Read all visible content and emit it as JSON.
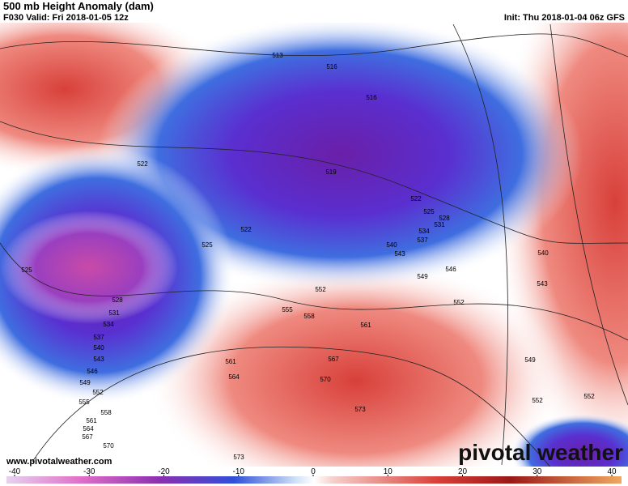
{
  "header": {
    "title": "500 mb Height Anomaly (dam)",
    "subtitle": "F030 Valid: Fri 2018-01-05 12z",
    "init": "Init: Thu 2018-01-04 06z GFS"
  },
  "contour_labels": [
    "513",
    "516",
    "516",
    "519",
    "522",
    "522",
    "522",
    "525",
    "528",
    "531",
    "534",
    "537",
    "540",
    "543",
    "546",
    "549",
    "552",
    "552",
    "555",
    "558",
    "561",
    "525",
    "525",
    "528",
    "531",
    "534",
    "537",
    "540",
    "543",
    "546",
    "549",
    "552",
    "555",
    "558",
    "561",
    "564",
    "567",
    "570",
    "573",
    "561",
    "564",
    "567",
    "570",
    "573",
    "540",
    "543",
    "549",
    "552",
    "552"
  ],
  "watermark": {
    "url": "www.pivotalweather.com",
    "logo": "pivotal weather"
  },
  "colorbar": {
    "lim": [
      -40,
      40
    ],
    "ticks": [
      -40,
      -30,
      -20,
      -10,
      0,
      10,
      20,
      30,
      40
    ]
  }
}
